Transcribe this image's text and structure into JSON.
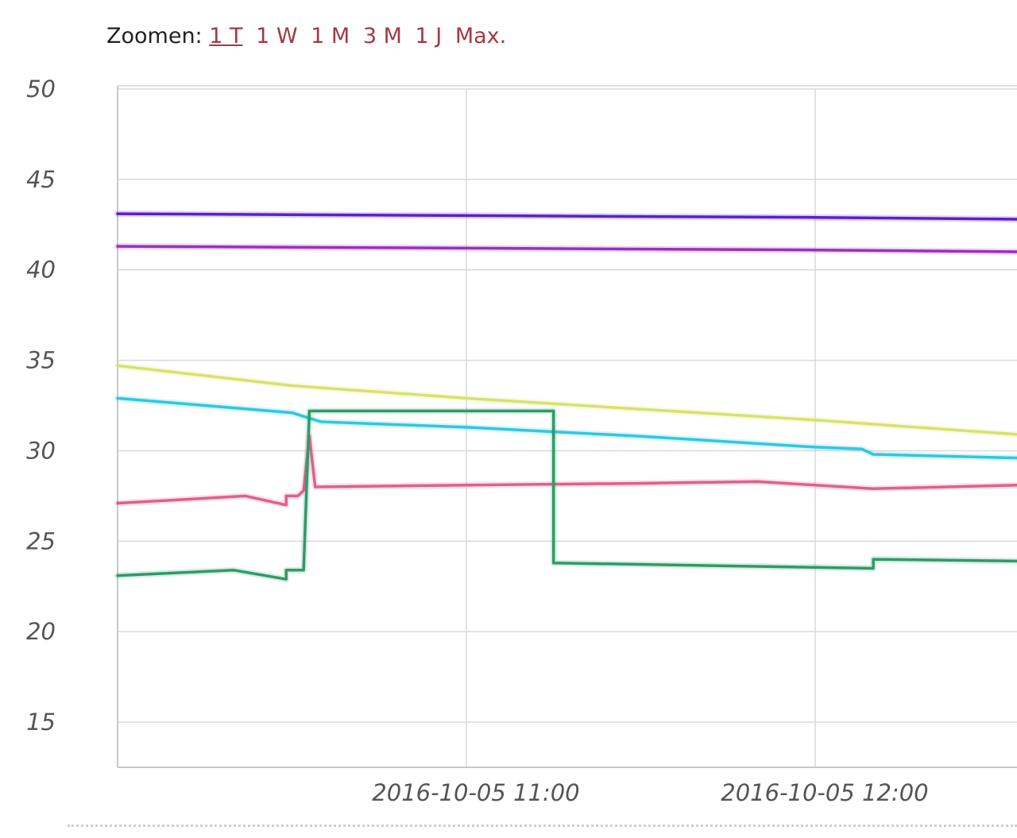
{
  "zoom": {
    "label": "Zoomen:",
    "options": [
      "1 T",
      "1 W",
      "1 M",
      "3 M",
      "1 J",
      "Max."
    ],
    "active": "1 T",
    "link_color": "#a23a44"
  },
  "chart_data": {
    "type": "line",
    "title": "",
    "xlabel": "",
    "ylabel": "",
    "ylim": [
      12.5,
      50
    ],
    "yticks": [
      15,
      20,
      25,
      30,
      35,
      40,
      45,
      50
    ],
    "xlim": [
      "2016-10-05 10:00",
      "2016-10-05 12:35"
    ],
    "xticks": [
      "2016-10-05 11:00",
      "2016-10-05 12:00"
    ],
    "grid": true,
    "series": [
      {
        "color": "#5b1fd1",
        "x": [
          "2016-10-05 10:00",
          "2016-10-05 11:00",
          "2016-10-05 12:00",
          "2016-10-05 12:35"
        ],
        "y": [
          43.1,
          43.0,
          42.9,
          42.8
        ]
      },
      {
        "color": "#9b2fc0",
        "x": [
          "2016-10-05 10:00",
          "2016-10-05 11:00",
          "2016-10-05 12:00",
          "2016-10-05 12:35"
        ],
        "y": [
          41.3,
          41.2,
          41.1,
          41.0
        ]
      },
      {
        "color": "#d6e36a",
        "x": [
          "2016-10-05 10:00",
          "2016-10-05 10:30",
          "2016-10-05 11:00",
          "2016-10-05 11:30",
          "2016-10-05 12:00",
          "2016-10-05 12:35"
        ],
        "y": [
          34.7,
          33.6,
          32.9,
          32.3,
          31.7,
          30.9
        ]
      },
      {
        "color": "#2ec8e0",
        "x": [
          "2016-10-05 10:00",
          "2016-10-05 10:30",
          "2016-10-05 10:32",
          "2016-10-05 10:35",
          "2016-10-05 11:00",
          "2016-10-05 11:30",
          "2016-10-05 12:00",
          "2016-10-05 12:08",
          "2016-10-05 12:10",
          "2016-10-05 12:35"
        ],
        "y": [
          32.9,
          32.1,
          31.9,
          31.6,
          31.3,
          30.8,
          30.2,
          30.1,
          29.8,
          29.6
        ]
      },
      {
        "color": "#e0608a",
        "x": [
          "2016-10-05 10:00",
          "2016-10-05 10:22",
          "2016-10-05 10:29",
          "2016-10-05 10:29",
          "2016-10-05 10:31",
          "2016-10-05 10:32",
          "2016-10-05 10:33",
          "2016-10-05 10:34",
          "2016-10-05 11:00",
          "2016-10-05 11:30",
          "2016-10-05 11:50",
          "2016-10-05 12:10",
          "2016-10-05 12:35"
        ],
        "y": [
          27.1,
          27.5,
          27.0,
          27.5,
          27.5,
          27.8,
          30.8,
          28.0,
          28.1,
          28.2,
          28.3,
          27.9,
          28.1
        ]
      },
      {
        "color": "#2f9a68",
        "x": [
          "2016-10-05 10:00",
          "2016-10-05 10:20",
          "2016-10-05 10:29",
          "2016-10-05 10:29",
          "2016-10-05 10:32",
          "2016-10-05 10:33",
          "2016-10-05 11:15",
          "2016-10-05 11:15",
          "2016-10-05 12:10",
          "2016-10-05 12:10",
          "2016-10-05 12:35"
        ],
        "y": [
          23.1,
          23.4,
          22.9,
          23.4,
          23.4,
          32.2,
          32.2,
          23.8,
          23.5,
          24.0,
          23.9
        ]
      }
    ]
  }
}
